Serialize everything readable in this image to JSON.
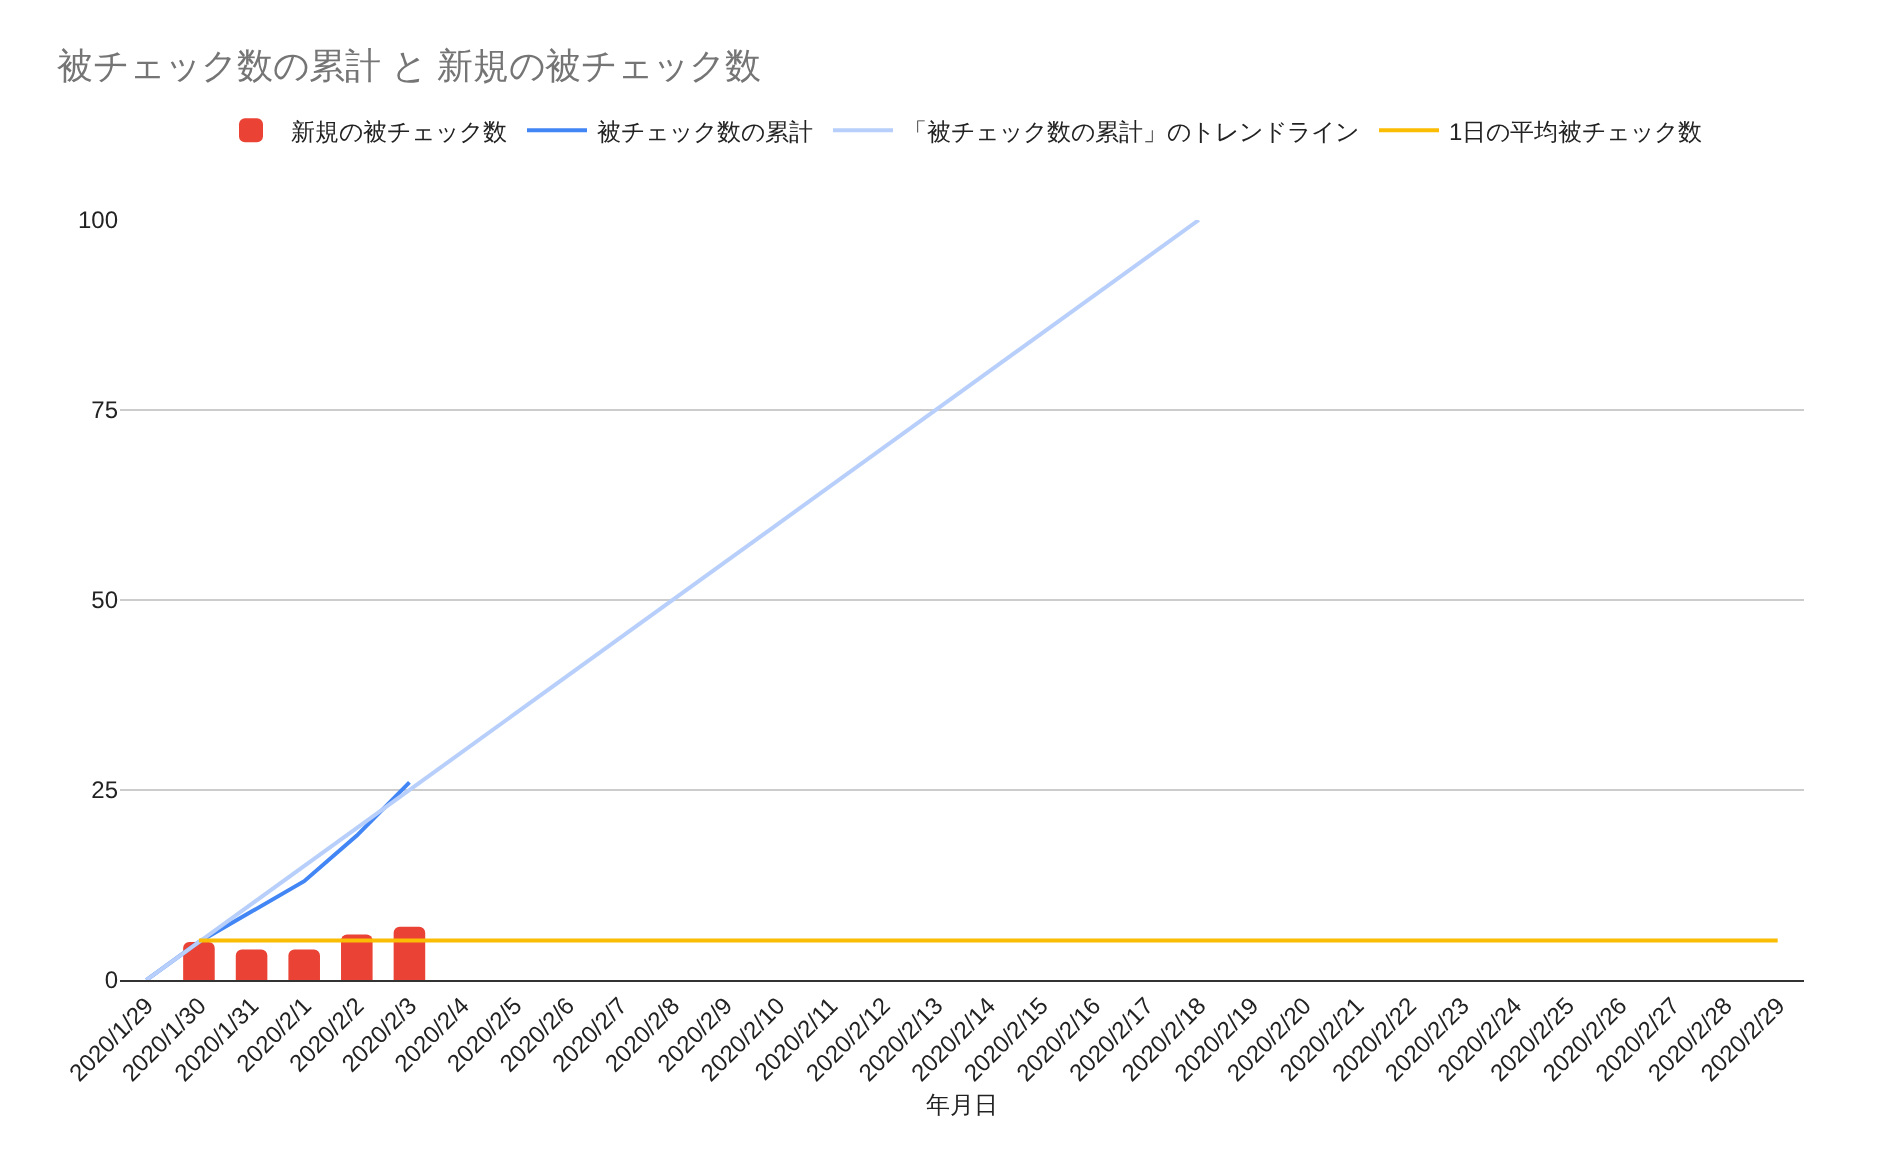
{
  "chart_data": {
    "type": "bar",
    "title": "被チェック数の累計 と 新規の被チェック数",
    "xlabel": "年月日",
    "categories": [
      "2020/1/29",
      "2020/1/30",
      "2020/1/31",
      "2020/2/1",
      "2020/2/2",
      "2020/2/3",
      "2020/2/4",
      "2020/2/5",
      "2020/2/6",
      "2020/2/7",
      "2020/2/8",
      "2020/2/9",
      "2020/2/10",
      "2020/2/11",
      "2020/2/12",
      "2020/2/13",
      "2020/2/14",
      "2020/2/15",
      "2020/2/16",
      "2020/2/17",
      "2020/2/18",
      "2020/2/19",
      "2020/2/20",
      "2020/2/21",
      "2020/2/22",
      "2020/2/23",
      "2020/2/24",
      "2020/2/25",
      "2020/2/26",
      "2020/2/27",
      "2020/2/28",
      "2020/2/29"
    ],
    "series": [
      {
        "name": "新規の被チェック数",
        "color": "#ea4335",
        "values": [
          null,
          5,
          4,
          4,
          6,
          7,
          null,
          null,
          null,
          null,
          null,
          null,
          null,
          null,
          null,
          null,
          null,
          null,
          null,
          null,
          null,
          null,
          null,
          null,
          null,
          null,
          null,
          null,
          null,
          null,
          null,
          null
        ]
      },
      {
        "name": "被チェック数の累計",
        "type": "line",
        "color": "#4285f4",
        "values": [
          0,
          5,
          9,
          13,
          19,
          26,
          null,
          null,
          null,
          null,
          null,
          null,
          null,
          null,
          null,
          null,
          null,
          null,
          null,
          null,
          null,
          null,
          null,
          null,
          null,
          null,
          null,
          null,
          null,
          null,
          null,
          null
        ]
      },
      {
        "name": "「被チェック数の累計」のトレンドライン",
        "type": "line",
        "color": "#b7cffa",
        "x": [
          "2020/1/29",
          "2020/2/18"
        ],
        "values": [
          0,
          100
        ]
      },
      {
        "name": "1日の平均被チェック数",
        "type": "line",
        "color": "#fbbc04",
        "values": [
          null,
          5.2,
          5.2,
          5.2,
          5.2,
          5.2,
          5.2,
          5.2,
          5.2,
          5.2,
          5.2,
          5.2,
          5.2,
          5.2,
          5.2,
          5.2,
          5.2,
          5.2,
          5.2,
          5.2,
          5.2,
          5.2,
          5.2,
          5.2,
          5.2,
          5.2,
          5.2,
          5.2,
          5.2,
          5.2,
          5.2,
          5.2
        ]
      }
    ],
    "ylim": [
      0,
      100
    ],
    "yticks": [
      0,
      25,
      50,
      75,
      100
    ],
    "grid": "y",
    "legend": "top",
    "marker": "none"
  }
}
